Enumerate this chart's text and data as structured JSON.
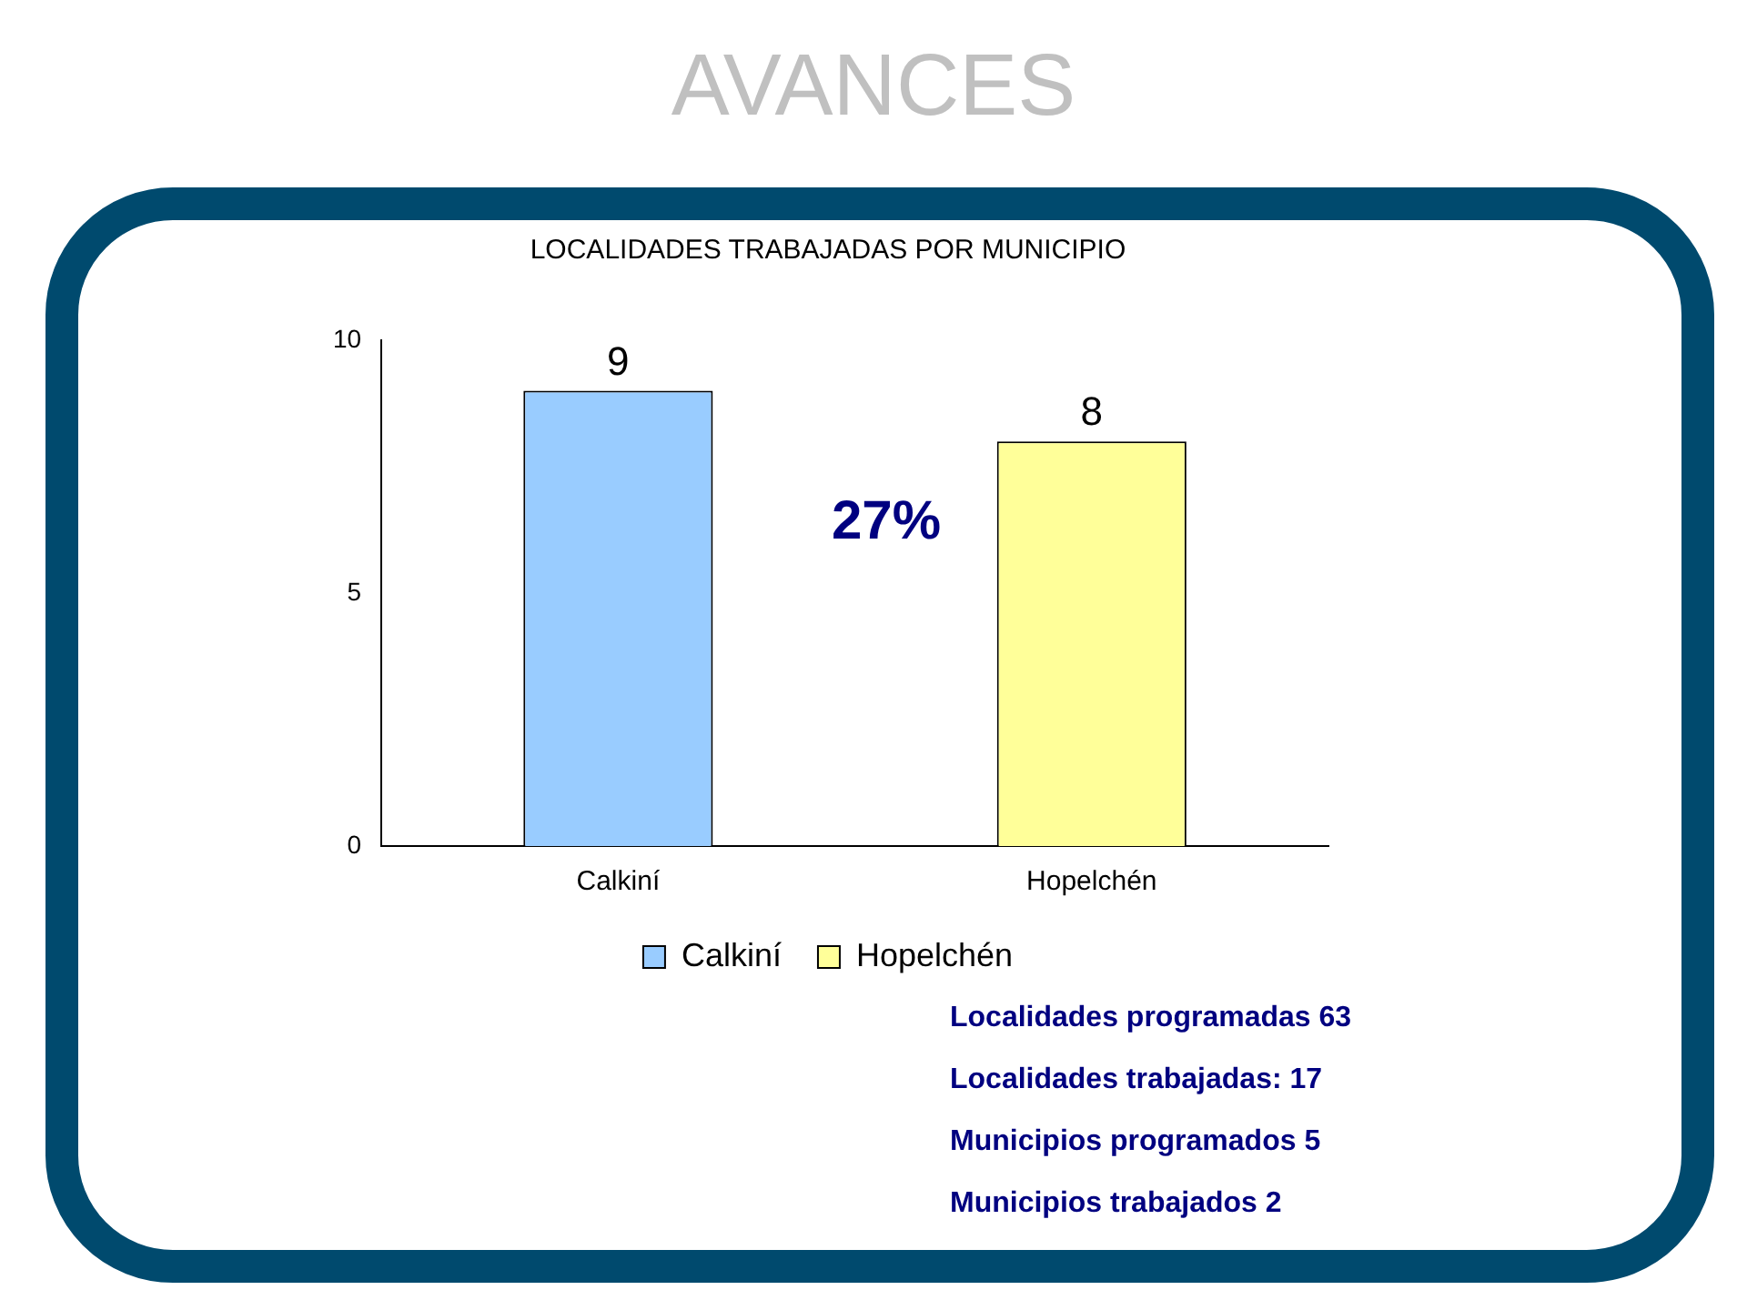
{
  "chart_data": {
    "type": "bar",
    "title": "AVANCES",
    "subtitle": "LOCALIDADES TRABAJADAS POR MUNICIPIO",
    "categories": [
      "Calkiní",
      "Hopelchén"
    ],
    "series": [
      {
        "name": "Calkiní",
        "color": "#99ccff",
        "values": [
          9,
          null
        ]
      },
      {
        "name": "Hopelchén",
        "color": "#ffff99",
        "values": [
          null,
          8
        ]
      }
    ],
    "ylim": [
      0,
      10
    ],
    "yticks": [
      0,
      5,
      10
    ],
    "grid": false,
    "legend": "bottom",
    "data_labels": true,
    "annotations": [
      "27%",
      "Localidades programadas 63",
      "Localidades trabajadas: 17",
      "Municipios programados 5",
      "Municipios trabajados 2"
    ]
  }
}
